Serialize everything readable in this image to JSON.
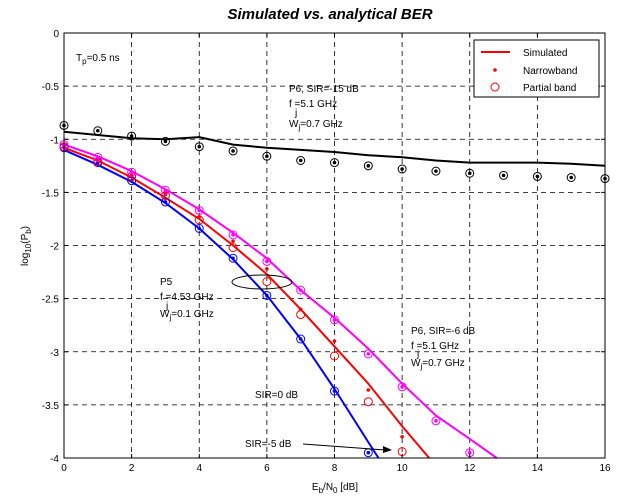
{
  "chart_data": {
    "type": "line",
    "title": "Simulated vs. analytical BER",
    "xlabel": {
      "main": "E",
      "sub1": "b",
      "mid": "/N",
      "sub2": "0",
      "tail": " [dB]"
    },
    "ylabel": {
      "main": "log",
      "sub1": "10",
      "mid": "(P",
      "sub2": "b",
      "tail": ")"
    },
    "xlim": [
      0,
      16
    ],
    "ylim": [
      -4,
      0
    ],
    "xticks": [
      0,
      2,
      4,
      6,
      8,
      10,
      12,
      14,
      16
    ],
    "yticks": [
      0,
      -0.5,
      -1,
      -1.5,
      -2,
      -2.5,
      -3,
      -3.5,
      -4
    ],
    "grid": true,
    "legend": {
      "position": "top-right",
      "entries": [
        {
          "label": "Simulated",
          "style": "line",
          "color": "#ff0000"
        },
        {
          "label": "Narrowband",
          "style": "dot",
          "color": "#ff0000"
        },
        {
          "label": "Partial band",
          "style": "circle",
          "color": "#ff0000"
        }
      ]
    },
    "series": [
      {
        "color": "#000000",
        "x": [
          0,
          1,
          2,
          3,
          4,
          5,
          6,
          7,
          8,
          9,
          10,
          11,
          12,
          13,
          14,
          15,
          16
        ],
        "simulated": [
          -0.93,
          -0.96,
          -0.99,
          -1.0,
          -0.98,
          -1.05,
          -1.08,
          -1.1,
          -1.12,
          -1.15,
          -1.17,
          -1.2,
          -1.22,
          -1.22,
          -1.22,
          -1.23,
          -1.25
        ],
        "narrowband_x": [
          0,
          1,
          2,
          3,
          4,
          5,
          6,
          7,
          8,
          9,
          10,
          11,
          12,
          13,
          14,
          15,
          16
        ],
        "narrowband": [
          -0.87,
          -0.92,
          -0.97,
          -1.02,
          -1.07,
          -1.11,
          -1.16,
          -1.2,
          -1.22,
          -1.25,
          -1.28,
          -1.3,
          -1.32,
          -1.34,
          -1.35,
          -1.36,
          -1.37
        ],
        "partial_x": [
          0,
          1,
          2,
          3,
          4,
          5,
          6,
          7,
          8,
          9,
          10,
          11,
          12,
          13,
          14,
          15,
          16
        ],
        "partial": [
          -0.87,
          -0.92,
          -0.97,
          -1.02,
          -1.07,
          -1.11,
          -1.16,
          -1.2,
          -1.22,
          -1.25,
          -1.28,
          -1.3,
          -1.32,
          -1.34,
          -1.35,
          -1.36,
          -1.37
        ]
      },
      {
        "color": "#0000ff",
        "x": [
          0,
          1,
          2,
          3,
          4,
          5,
          6,
          7,
          8,
          9,
          9.3
        ],
        "simulated": [
          -1.1,
          -1.24,
          -1.4,
          -1.6,
          -1.84,
          -2.13,
          -2.47,
          -2.88,
          -3.35,
          -3.85,
          -4.0
        ],
        "narrowband_x": [
          0,
          1,
          2,
          3,
          4,
          5,
          6,
          7,
          8,
          9
        ],
        "narrowband": [
          -1.08,
          -1.22,
          -1.39,
          -1.59,
          -1.84,
          -2.12,
          -2.47,
          -2.88,
          -3.37,
          -3.95
        ],
        "partial_x": [
          0,
          1,
          2,
          3,
          4,
          5,
          6,
          7,
          8,
          9
        ],
        "partial": [
          -1.08,
          -1.22,
          -1.39,
          -1.59,
          -1.84,
          -2.12,
          -2.47,
          -2.88,
          -3.37,
          -3.95
        ]
      },
      {
        "color": "#ff0000",
        "x": [
          0,
          1,
          2,
          3,
          4,
          5,
          6,
          7,
          8,
          9,
          10,
          10.8
        ],
        "simulated": [
          -1.08,
          -1.2,
          -1.36,
          -1.55,
          -1.75,
          -2.0,
          -2.27,
          -2.6,
          -2.95,
          -3.3,
          -3.7,
          -4.0
        ],
        "narrowband_x": [
          0,
          1,
          2,
          3,
          4,
          5,
          6,
          7,
          8,
          9,
          10
        ],
        "narrowband": [
          -1.06,
          -1.2,
          -1.34,
          -1.52,
          -1.73,
          -1.96,
          -2.22,
          -2.6,
          -2.9,
          -3.36,
          -3.8
        ],
        "partial_x": [
          0,
          1,
          2,
          3,
          4,
          5,
          6,
          7,
          8,
          9,
          10
        ],
        "partial": [
          -1.07,
          -1.21,
          -1.35,
          -1.53,
          -1.76,
          -2.02,
          -2.34,
          -2.65,
          -3.04,
          -3.47,
          -3.94
        ]
      },
      {
        "color": "#ff00ff",
        "x": [
          0,
          1,
          2,
          3,
          4,
          5,
          6,
          7,
          8,
          9,
          10,
          11,
          12,
          12.8
        ],
        "simulated": [
          -1.05,
          -1.16,
          -1.3,
          -1.47,
          -1.66,
          -1.88,
          -2.12,
          -2.42,
          -2.68,
          -2.97,
          -3.3,
          -3.6,
          -3.82,
          -4.0
        ],
        "narrowband_x": [
          0,
          1,
          2,
          3,
          4,
          5,
          6,
          7,
          8,
          9,
          10,
          11,
          12
        ],
        "narrowband": [
          -1.05,
          -1.17,
          -1.31,
          -1.48,
          -1.67,
          -1.9,
          -2.15,
          -2.42,
          -2.7,
          -3.02,
          -3.33,
          -3.65,
          -3.95
        ],
        "partial_x": [
          0,
          1,
          2,
          3,
          4,
          5,
          6,
          7,
          8,
          9,
          10,
          11,
          12
        ],
        "partial": [
          -1.05,
          -1.17,
          -1.31,
          -1.48,
          -1.67,
          -1.9,
          -2.15,
          -2.42,
          -2.7,
          -3.02,
          -3.33,
          -3.65,
          -3.95
        ]
      }
    ],
    "annotations": {
      "tp": {
        "main": "T",
        "sub": "p",
        "tail": "=0.5 ns"
      },
      "p6a": {
        "line1": "P6, SIR=-15 dB",
        "line2": "f =5.1 GHz",
        "line2_sub": "j",
        "line3_main": "W",
        "line3_sub": "j",
        "line3_tail": "=0.7 GHz"
      },
      "p5": {
        "line1": "P5",
        "line2": "f =4.53 GHz",
        "line2_sub": "j",
        "line3_main": "W",
        "line3_sub": "j",
        "line3_tail": "=0.1 GHz"
      },
      "p6b": {
        "line1": "P6, SIR=-6 dB",
        "line2": "f =5.1 GHz",
        "line2_sub": "j",
        "line3_main": "W",
        "line3_sub": "j",
        "line3_tail": "=0.7 GHz"
      },
      "sir0": "SIR=0 dB",
      "sirm5": "SIR=-5 dB"
    }
  }
}
